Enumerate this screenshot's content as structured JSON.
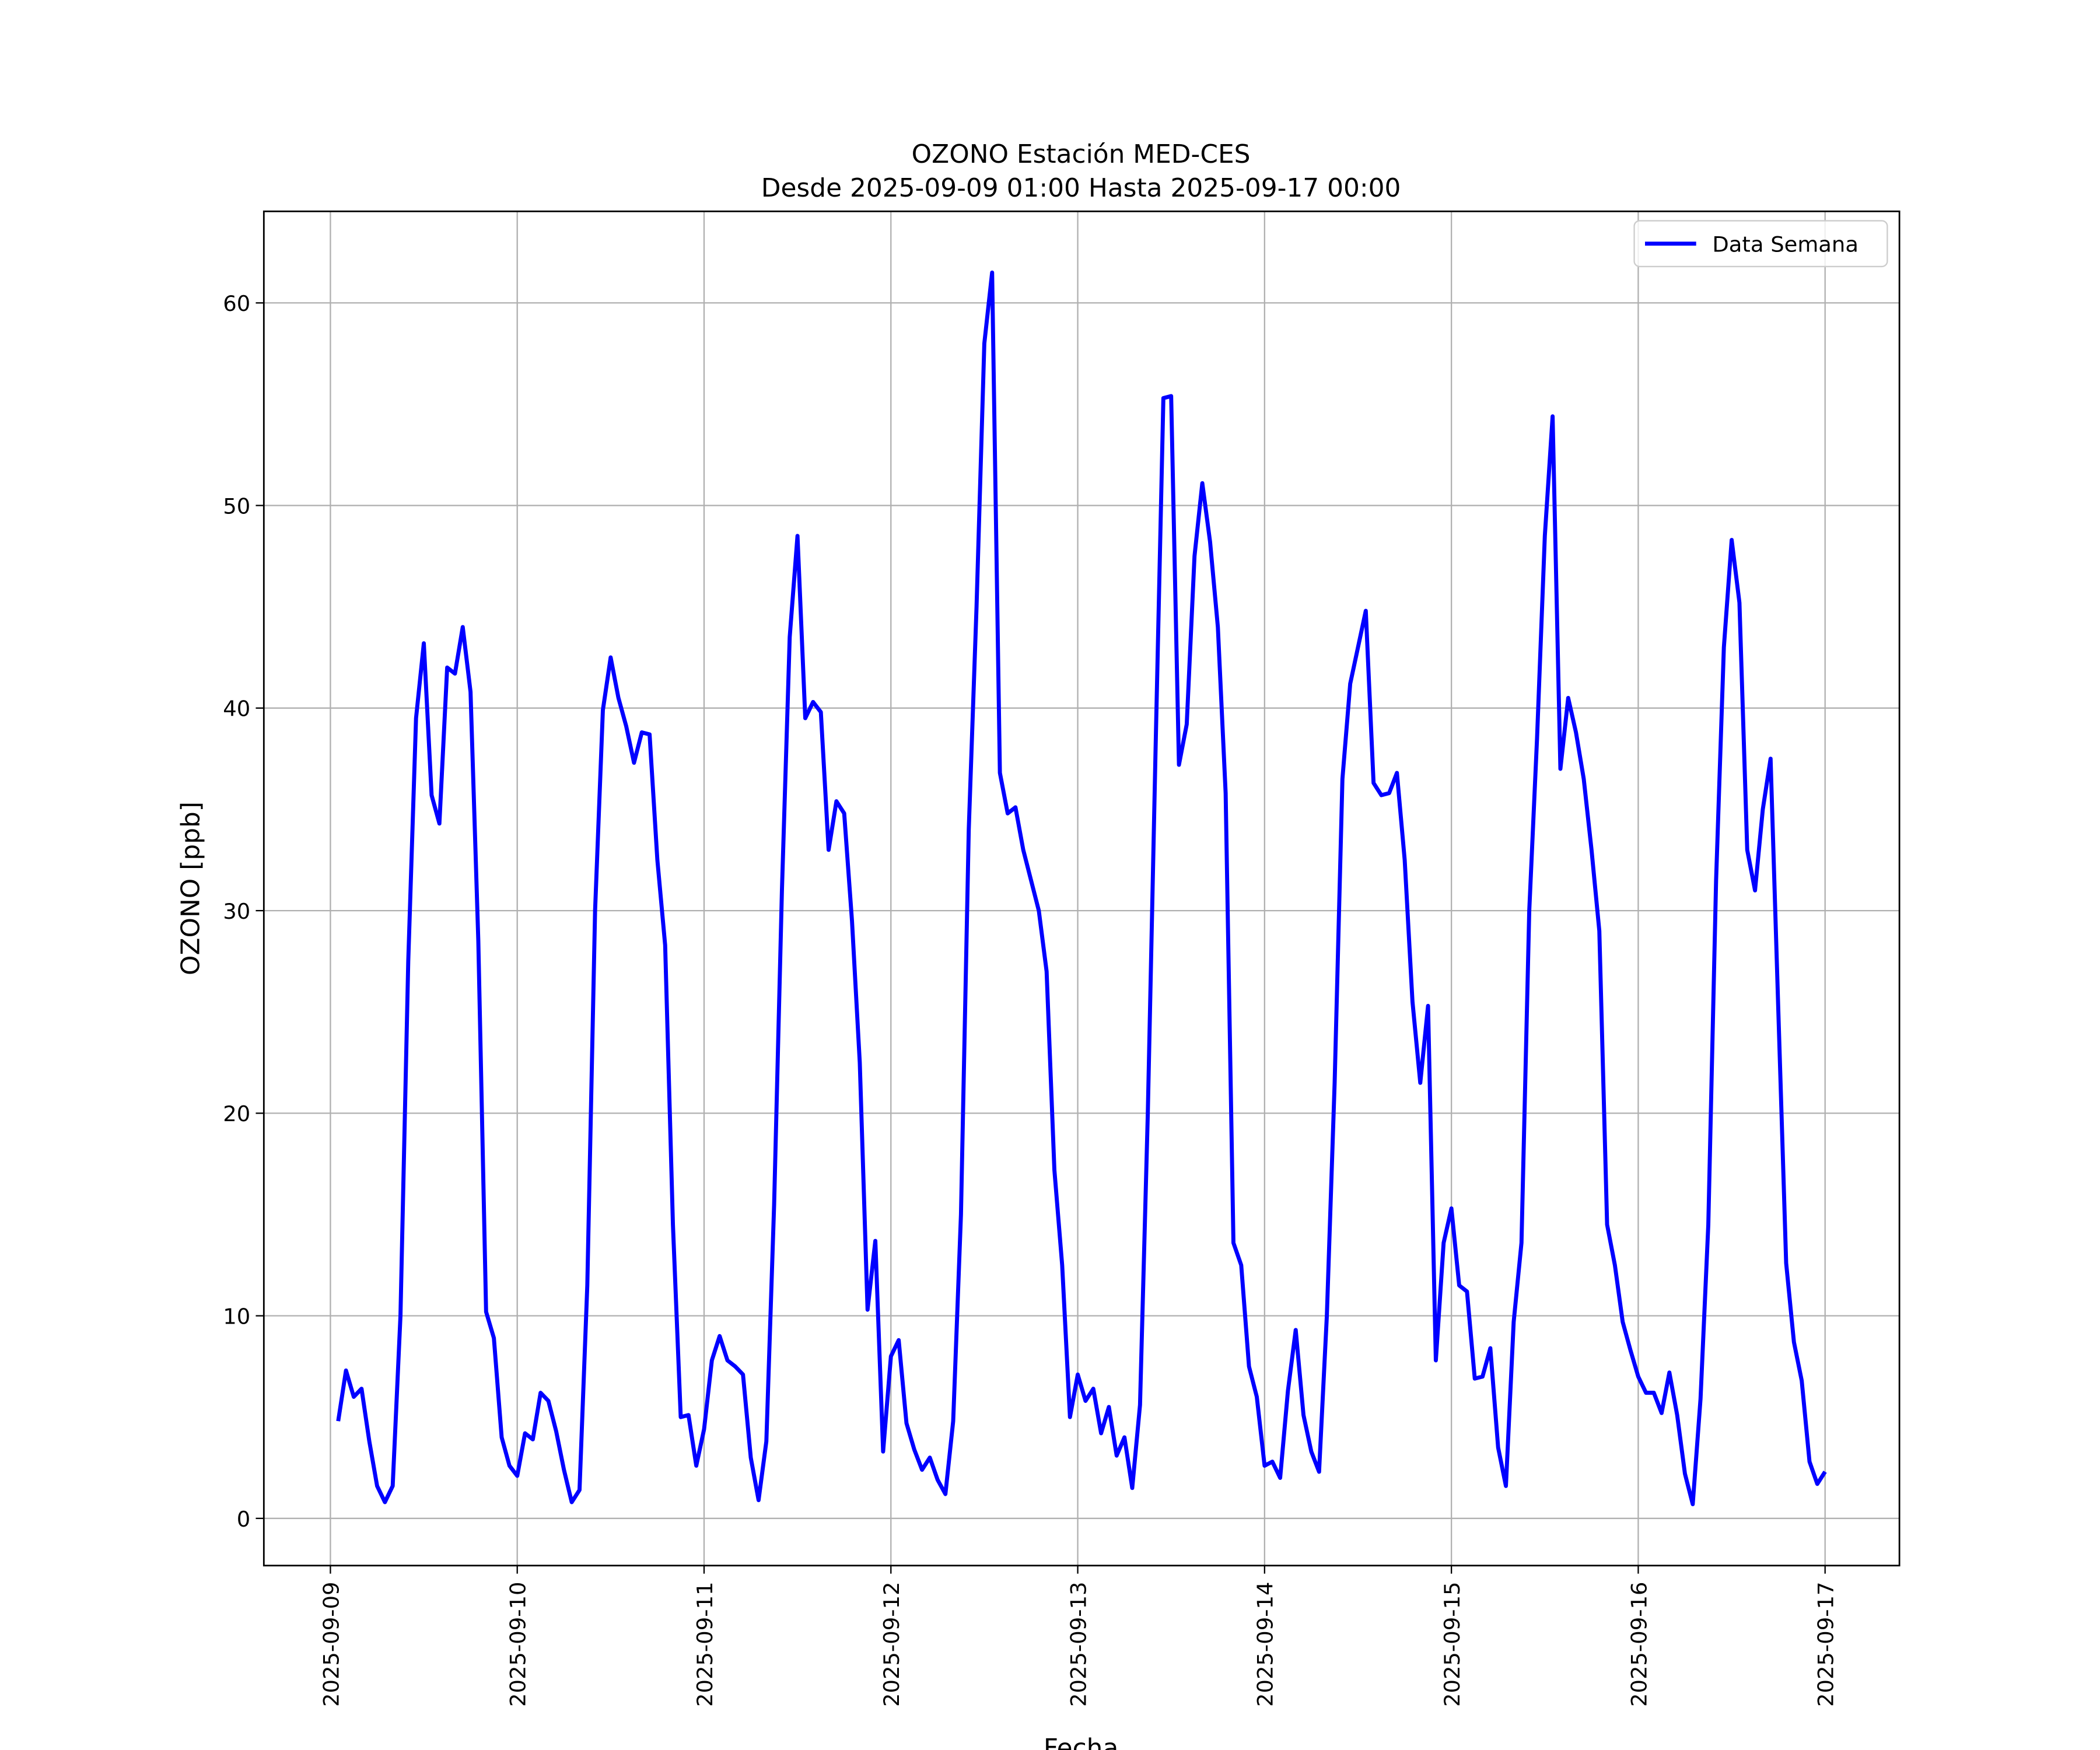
{
  "chart_data": {
    "type": "line",
    "title": "OZONO Estación MED-CES",
    "subtitle": "Desde 2025-09-09 01:00 Hasta 2025-09-17 00:00",
    "xlabel": "Fecha",
    "ylabel": "OZONO [ppb]",
    "x": [
      "2025-09-09 01:00",
      "2025-09-09 02:00",
      "2025-09-09 03:00",
      "2025-09-09 04:00",
      "2025-09-09 05:00",
      "2025-09-09 06:00",
      "2025-09-09 07:00",
      "2025-09-09 08:00",
      "2025-09-09 09:00",
      "2025-09-09 10:00",
      "2025-09-09 11:00",
      "2025-09-09 12:00",
      "2025-09-09 13:00",
      "2025-09-09 14:00",
      "2025-09-09 15:00",
      "2025-09-09 16:00",
      "2025-09-09 17:00",
      "2025-09-09 18:00",
      "2025-09-09 19:00",
      "2025-09-09 20:00",
      "2025-09-09 21:00",
      "2025-09-09 22:00",
      "2025-09-09 23:00",
      "2025-09-10 00:00",
      "2025-09-10 01:00",
      "2025-09-10 02:00",
      "2025-09-10 03:00",
      "2025-09-10 04:00",
      "2025-09-10 05:00",
      "2025-09-10 06:00",
      "2025-09-10 07:00",
      "2025-09-10 08:00",
      "2025-09-10 09:00",
      "2025-09-10 10:00",
      "2025-09-10 11:00",
      "2025-09-10 12:00",
      "2025-09-10 13:00",
      "2025-09-10 14:00",
      "2025-09-10 15:00",
      "2025-09-10 16:00",
      "2025-09-10 17:00",
      "2025-09-10 18:00",
      "2025-09-10 19:00",
      "2025-09-10 20:00",
      "2025-09-10 21:00",
      "2025-09-10 22:00",
      "2025-09-10 23:00",
      "2025-09-11 00:00",
      "2025-09-11 01:00",
      "2025-09-11 02:00",
      "2025-09-11 03:00",
      "2025-09-11 04:00",
      "2025-09-11 05:00",
      "2025-09-11 06:00",
      "2025-09-11 07:00",
      "2025-09-11 08:00",
      "2025-09-11 09:00",
      "2025-09-11 10:00",
      "2025-09-11 11:00",
      "2025-09-11 12:00",
      "2025-09-11 13:00",
      "2025-09-11 14:00",
      "2025-09-11 15:00",
      "2025-09-11 16:00",
      "2025-09-11 17:00",
      "2025-09-11 18:00",
      "2025-09-11 19:00",
      "2025-09-11 20:00",
      "2025-09-11 21:00",
      "2025-09-11 22:00",
      "2025-09-11 23:00",
      "2025-09-12 00:00",
      "2025-09-12 01:00",
      "2025-09-12 02:00",
      "2025-09-12 03:00",
      "2025-09-12 04:00",
      "2025-09-12 05:00",
      "2025-09-12 06:00",
      "2025-09-12 07:00",
      "2025-09-12 08:00",
      "2025-09-12 09:00",
      "2025-09-12 10:00",
      "2025-09-12 11:00",
      "2025-09-12 12:00",
      "2025-09-12 13:00",
      "2025-09-12 14:00",
      "2025-09-12 15:00",
      "2025-09-12 16:00",
      "2025-09-12 17:00",
      "2025-09-12 18:00",
      "2025-09-12 19:00",
      "2025-09-12 20:00",
      "2025-09-12 21:00",
      "2025-09-12 22:00",
      "2025-09-12 23:00",
      "2025-09-13 00:00",
      "2025-09-13 01:00",
      "2025-09-13 02:00",
      "2025-09-13 03:00",
      "2025-09-13 04:00",
      "2025-09-13 05:00",
      "2025-09-13 06:00",
      "2025-09-13 07:00",
      "2025-09-13 08:00",
      "2025-09-13 09:00",
      "2025-09-13 10:00",
      "2025-09-13 11:00",
      "2025-09-13 12:00",
      "2025-09-13 13:00",
      "2025-09-13 14:00",
      "2025-09-13 15:00",
      "2025-09-13 16:00",
      "2025-09-13 17:00",
      "2025-09-13 18:00",
      "2025-09-13 19:00",
      "2025-09-13 20:00",
      "2025-09-13 21:00",
      "2025-09-13 22:00",
      "2025-09-13 23:00",
      "2025-09-14 00:00",
      "2025-09-14 01:00",
      "2025-09-14 02:00",
      "2025-09-14 03:00",
      "2025-09-14 04:00",
      "2025-09-14 05:00",
      "2025-09-14 06:00",
      "2025-09-14 07:00",
      "2025-09-14 08:00",
      "2025-09-14 09:00",
      "2025-09-14 10:00",
      "2025-09-14 11:00",
      "2025-09-14 12:00",
      "2025-09-14 13:00",
      "2025-09-14 14:00",
      "2025-09-14 15:00",
      "2025-09-14 16:00",
      "2025-09-14 17:00",
      "2025-09-14 18:00",
      "2025-09-14 19:00",
      "2025-09-14 20:00",
      "2025-09-14 21:00",
      "2025-09-14 22:00",
      "2025-09-14 23:00",
      "2025-09-15 00:00",
      "2025-09-15 01:00",
      "2025-09-15 02:00",
      "2025-09-15 03:00",
      "2025-09-15 04:00",
      "2025-09-15 05:00",
      "2025-09-15 06:00",
      "2025-09-15 07:00",
      "2025-09-15 08:00",
      "2025-09-15 09:00",
      "2025-09-15 10:00",
      "2025-09-15 11:00",
      "2025-09-15 12:00",
      "2025-09-15 13:00",
      "2025-09-15 14:00",
      "2025-09-15 15:00",
      "2025-09-15 16:00",
      "2025-09-15 17:00",
      "2025-09-15 18:00",
      "2025-09-15 19:00",
      "2025-09-15 20:00",
      "2025-09-15 21:00",
      "2025-09-15 22:00",
      "2025-09-15 23:00",
      "2025-09-16 00:00",
      "2025-09-16 01:00",
      "2025-09-16 02:00",
      "2025-09-16 03:00",
      "2025-09-16 04:00",
      "2025-09-16 05:00",
      "2025-09-16 06:00",
      "2025-09-16 07:00",
      "2025-09-16 08:00",
      "2025-09-16 09:00",
      "2025-09-16 10:00",
      "2025-09-16 11:00",
      "2025-09-16 12:00",
      "2025-09-16 13:00",
      "2025-09-16 14:00",
      "2025-09-16 15:00",
      "2025-09-16 16:00",
      "2025-09-16 17:00",
      "2025-09-16 18:00",
      "2025-09-16 19:00",
      "2025-09-16 20:00",
      "2025-09-16 21:00",
      "2025-09-16 22:00",
      "2025-09-16 23:00",
      "2025-09-17 00:00"
    ],
    "series": [
      {
        "name": "Data Semana",
        "color": "#0000ff",
        "values": [
          4.8,
          7.3,
          6.0,
          6.4,
          3.8,
          1.6,
          0.8,
          1.6,
          10.0,
          27.5,
          39.5,
          43.2,
          35.7,
          34.3,
          42.0,
          41.7,
          44.0,
          40.8,
          28.5,
          10.2,
          8.9,
          4.0,
          2.6,
          2.1,
          4.2,
          3.9,
          6.2,
          5.8,
          4.3,
          2.4,
          0.8,
          1.4,
          11.5,
          30.0,
          39.9,
          42.5,
          40.5,
          39.1,
          37.3,
          38.8,
          38.7,
          32.5,
          28.3,
          14.5,
          5.0,
          5.1,
          2.6,
          4.4,
          7.8,
          9.0,
          7.8,
          7.5,
          7.1,
          3.0,
          0.9,
          3.8,
          15.5,
          31.0,
          43.5,
          48.5,
          39.5,
          40.3,
          39.8,
          33.0,
          35.4,
          34.8,
          29.5,
          22.5,
          10.3,
          13.7,
          3.3,
          8.0,
          8.8,
          4.7,
          3.4,
          2.4,
          3.0,
          1.9,
          1.2,
          4.8,
          15.0,
          34.0,
          45.0,
          58.0,
          61.5,
          36.8,
          34.8,
          35.1,
          33.0,
          31.5,
          30.0,
          27.0,
          17.2,
          12.5,
          5.0,
          7.1,
          5.8,
          6.4,
          4.2,
          5.5,
          3.1,
          4.0,
          1.5,
          5.6,
          20.0,
          38.0,
          55.3,
          55.4,
          37.2,
          39.2,
          47.5,
          51.1,
          48.2,
          44.0,
          35.8,
          13.6,
          12.5,
          7.5,
          6.0,
          2.6,
          2.8,
          2.0,
          6.3,
          9.3,
          5.1,
          3.3,
          2.3,
          10.0,
          21.5,
          36.5,
          41.2,
          43.0,
          44.8,
          36.3,
          35.7,
          35.8,
          36.8,
          32.5,
          25.5,
          21.5,
          25.3,
          7.8,
          13.6,
          15.3,
          11.5,
          11.2,
          6.9,
          7.0,
          8.4,
          3.5,
          1.6,
          9.7,
          13.6,
          30.0,
          38.5,
          48.5,
          54.4,
          37.0,
          40.5,
          38.8,
          36.5,
          33.0,
          29.0,
          14.5,
          12.5,
          9.7,
          8.3,
          7.0,
          6.2,
          6.2,
          5.2,
          7.2,
          5.1,
          2.2,
          0.7,
          5.9,
          14.5,
          31.5,
          43.0,
          48.3,
          45.2,
          33.0,
          31.0,
          35.0,
          37.5,
          25.0,
          12.6,
          8.7,
          6.8,
          2.8,
          1.7,
          2.3
        ]
      }
    ],
    "ylim": [
      -2.33,
      64.52
    ],
    "yticks": [
      0,
      10,
      20,
      30,
      40,
      50,
      60
    ],
    "xticks": [
      "2025-09-09",
      "2025-09-10",
      "2025-09-11",
      "2025-09-12",
      "2025-09-13",
      "2025-09-14",
      "2025-09-15",
      "2025-09-16",
      "2025-09-17"
    ],
    "grid": true,
    "legend": "upper right"
  }
}
